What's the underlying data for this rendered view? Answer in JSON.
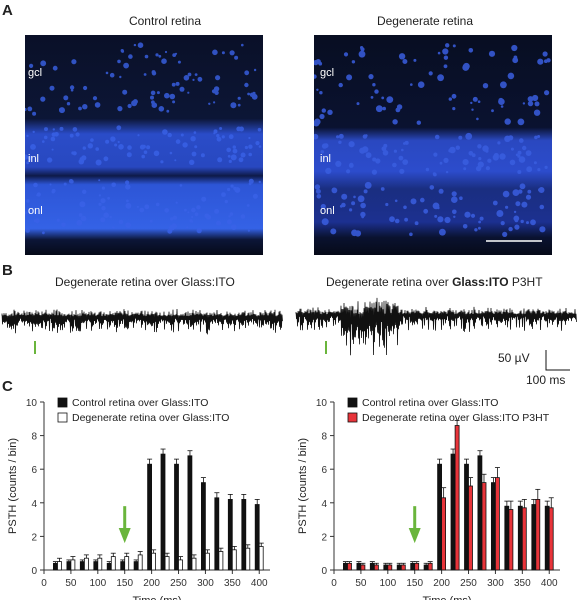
{
  "panel_letters": {
    "a": "A",
    "b": "B",
    "c": "C"
  },
  "panel_a": {
    "left_title": "Control retina",
    "right_title": "Degenerate retina",
    "layers": {
      "gcl": "gcl",
      "inl": "inl",
      "onl": "onl"
    }
  },
  "panel_b": {
    "left_title": "Degenerate retina over Glass:ITO",
    "right_title_prefix": "Degenerate retina over ",
    "right_title_bold": "Glass:ITO",
    "right_title_suffix": " P3HT",
    "scale_voltage": "50 µV",
    "scale_time": "100 ms"
  },
  "colors": {
    "control": "#111111",
    "degenerate_ito": "#ffffff",
    "p3ht": "#e8343a",
    "stimulus": "#6ab53c",
    "microscopy": "#3c6cff"
  },
  "chart_data": [
    {
      "type": "bar",
      "ylabel": "PSTH (counts / bin)",
      "xlabel": "Time (ms)",
      "ylim": [
        0,
        10
      ],
      "xlim": [
        0,
        420
      ],
      "yticks": [
        0,
        2,
        4,
        6,
        8,
        10
      ],
      "xticks": [
        0,
        50,
        100,
        150,
        200,
        250,
        300,
        350,
        400
      ],
      "stimulus_time_ms": 150,
      "legend_position": "top-left",
      "x": [
        25,
        50,
        75,
        100,
        125,
        150,
        175,
        200,
        225,
        250,
        275,
        300,
        325,
        350,
        375,
        400
      ],
      "series": [
        {
          "name": "Control retina over Glass:ITO",
          "color": "#111111",
          "values": [
            0.4,
            0.5,
            0.5,
            0.5,
            0.4,
            0.5,
            0.5,
            6.3,
            6.9,
            6.3,
            6.8,
            5.2,
            4.3,
            4.2,
            4.2,
            3.9
          ],
          "errors": [
            0.1,
            0.1,
            0.1,
            0.1,
            0.1,
            0.1,
            0.1,
            0.3,
            0.3,
            0.3,
            0.3,
            0.3,
            0.3,
            0.3,
            0.3,
            0.3
          ]
        },
        {
          "name": "Degenerate retina over Glass:ITO",
          "color": "#ffffff",
          "values": [
            0.5,
            0.6,
            0.7,
            0.7,
            0.8,
            0.8,
            0.9,
            1.0,
            0.8,
            0.6,
            0.7,
            1.0,
            1.1,
            1.2,
            1.3,
            1.4
          ],
          "errors": [
            0.2,
            0.2,
            0.2,
            0.2,
            0.2,
            0.2,
            0.2,
            0.2,
            0.2,
            0.2,
            0.2,
            0.2,
            0.2,
            0.2,
            0.2,
            0.2
          ]
        }
      ]
    },
    {
      "type": "bar",
      "ylabel": "PSTH (counts / bin)",
      "xlabel": "Time (ms)",
      "ylim": [
        0,
        10
      ],
      "xlim": [
        0,
        420
      ],
      "yticks": [
        0,
        2,
        4,
        6,
        8,
        10
      ],
      "xticks": [
        0,
        50,
        100,
        150,
        200,
        250,
        300,
        350,
        400
      ],
      "stimulus_time_ms": 150,
      "legend_position": "top-left",
      "x": [
        25,
        50,
        75,
        100,
        125,
        150,
        175,
        200,
        225,
        250,
        275,
        300,
        325,
        350,
        375,
        400
      ],
      "series": [
        {
          "name": "Control retina over Glass:ITO",
          "color": "#111111",
          "values": [
            0.4,
            0.4,
            0.4,
            0.3,
            0.3,
            0.4,
            0.3,
            6.3,
            6.9,
            6.3,
            6.8,
            5.2,
            3.8,
            3.8,
            3.9,
            3.8
          ],
          "errors": [
            0.1,
            0.1,
            0.1,
            0.1,
            0.1,
            0.1,
            0.1,
            0.3,
            0.3,
            0.3,
            0.3,
            0.3,
            0.3,
            0.3,
            0.3,
            0.3
          ]
        },
        {
          "name": "Degenerate retina over Glass:ITO P3HT",
          "color": "#e8343a",
          "values": [
            0.4,
            0.3,
            0.3,
            0.3,
            0.3,
            0.4,
            0.4,
            4.3,
            8.6,
            5.0,
            5.2,
            5.5,
            3.6,
            3.7,
            4.2,
            3.7
          ],
          "errors": [
            0.1,
            0.1,
            0.1,
            0.1,
            0.1,
            0.1,
            0.1,
            0.6,
            0.3,
            0.5,
            0.5,
            0.6,
            0.5,
            0.5,
            0.6,
            0.6
          ]
        }
      ]
    }
  ]
}
